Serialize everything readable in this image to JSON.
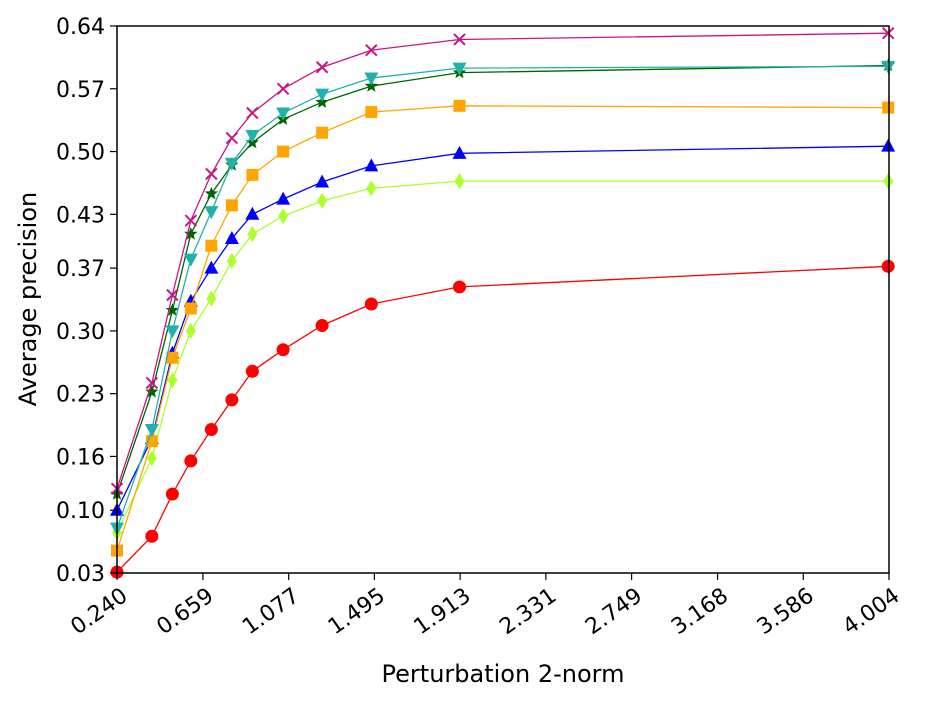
{
  "chart_data": {
    "type": "line",
    "title": "",
    "xlabel": "Perturbation 2-norm",
    "ylabel": "Average precision",
    "xlim": [
      0.24,
      4.004
    ],
    "ylim": [
      0.03,
      0.64
    ],
    "xticks": [
      0.24,
      0.659,
      1.077,
      1.495,
      1.913,
      2.331,
      2.749,
      3.168,
      3.586,
      4.004
    ],
    "xtick_labels": [
      "0.240",
      "0.659",
      "1.077",
      "1.495",
      "1.913",
      "2.331",
      "2.749",
      "3.168",
      "3.586",
      "4.004"
    ],
    "yticks": [
      0.03,
      0.1,
      0.16,
      0.23,
      0.3,
      0.37,
      0.43,
      0.5,
      0.57,
      0.64
    ],
    "ytick_labels": [
      "0.03",
      "0.10",
      "0.16",
      "0.23",
      "0.30",
      "0.37",
      "0.43",
      "0.50",
      "0.57",
      "0.64"
    ],
    "grid": false,
    "legend": "none",
    "x": [
      0.24,
      0.41,
      0.51,
      0.6,
      0.7,
      0.8,
      0.9,
      1.05,
      1.24,
      1.48,
      1.91,
      4.0
    ],
    "series": [
      {
        "color": "#ff0000",
        "marker": "circle",
        "values": [
          0.031,
          0.071,
          0.118,
          0.155,
          0.19,
          0.223,
          0.255,
          0.279,
          0.306,
          0.33,
          0.349,
          0.372
        ]
      },
      {
        "color": "#adff2f",
        "marker": "thin_diamond",
        "values": [
          0.075,
          0.158,
          0.245,
          0.3,
          0.336,
          0.378,
          0.408,
          0.428,
          0.445,
          0.459,
          0.467,
          0.467
        ]
      },
      {
        "color": "#0000ff",
        "marker": "triangle_up",
        "values": [
          0.1,
          0.18,
          0.275,
          0.333,
          0.37,
          0.403,
          0.43,
          0.447,
          0.466,
          0.484,
          0.498,
          0.506
        ]
      },
      {
        "color": "#ffa500",
        "marker": "square",
        "values": [
          0.055,
          0.177,
          0.27,
          0.325,
          0.395,
          0.44,
          0.474,
          0.5,
          0.521,
          0.544,
          0.551,
          0.549
        ]
      },
      {
        "color": "#006400",
        "marker": "star",
        "values": [
          0.118,
          0.232,
          0.323,
          0.408,
          0.453,
          0.485,
          0.51,
          0.536,
          0.555,
          0.573,
          0.588,
          0.596
        ]
      },
      {
        "color": "#20b2aa",
        "marker": "triangle_down",
        "values": [
          0.08,
          0.19,
          0.3,
          0.38,
          0.433,
          0.487,
          0.518,
          0.543,
          0.564,
          0.582,
          0.593,
          0.595
        ]
      },
      {
        "color": "#c71585",
        "marker": "x",
        "values": [
          0.124,
          0.242,
          0.34,
          0.423,
          0.475,
          0.515,
          0.543,
          0.57,
          0.594,
          0.613,
          0.625,
          0.632
        ]
      }
    ]
  }
}
